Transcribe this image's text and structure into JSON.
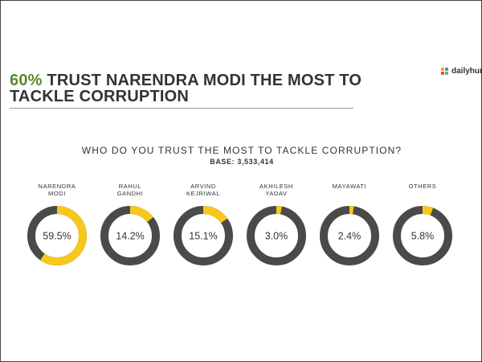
{
  "headline": {
    "percent": "60%",
    "rest": " TRUST NARENDRA  MODI THE MOST TO TACKLE CORRUPTION"
  },
  "logo": {
    "text": "dailyhunt"
  },
  "colors": {
    "accent": "#f7c71c",
    "ring": "#4a4a4a",
    "headline_green": "#5a8a2c",
    "text": "#333333",
    "logo_squares": [
      "#f5a623",
      "#3b8fd9",
      "#e84c3d",
      "#5cb85c"
    ]
  },
  "chart_data": {
    "type": "donut",
    "title": "WHO DO YOU TRUST THE MOST TO TACKLE CORRUPTION?",
    "subtitle": "BASE: 3,533,414",
    "categories": [
      [
        "NARENDRA",
        "MODI"
      ],
      [
        "RAHUL",
        "GANDHI"
      ],
      [
        "ARVIND",
        "KEJRIWAL"
      ],
      [
        "AKHILESH",
        "YADAV"
      ],
      [
        "MAYAWATI"
      ],
      [
        "OTHERS"
      ]
    ],
    "values": [
      59.5,
      14.2,
      15.1,
      3.0,
      2.4,
      5.8
    ],
    "value_labels": [
      "59.5%",
      "14.2%",
      "15.1%",
      "3.0%",
      "2.4%",
      "5.8%"
    ],
    "unit": "%"
  }
}
